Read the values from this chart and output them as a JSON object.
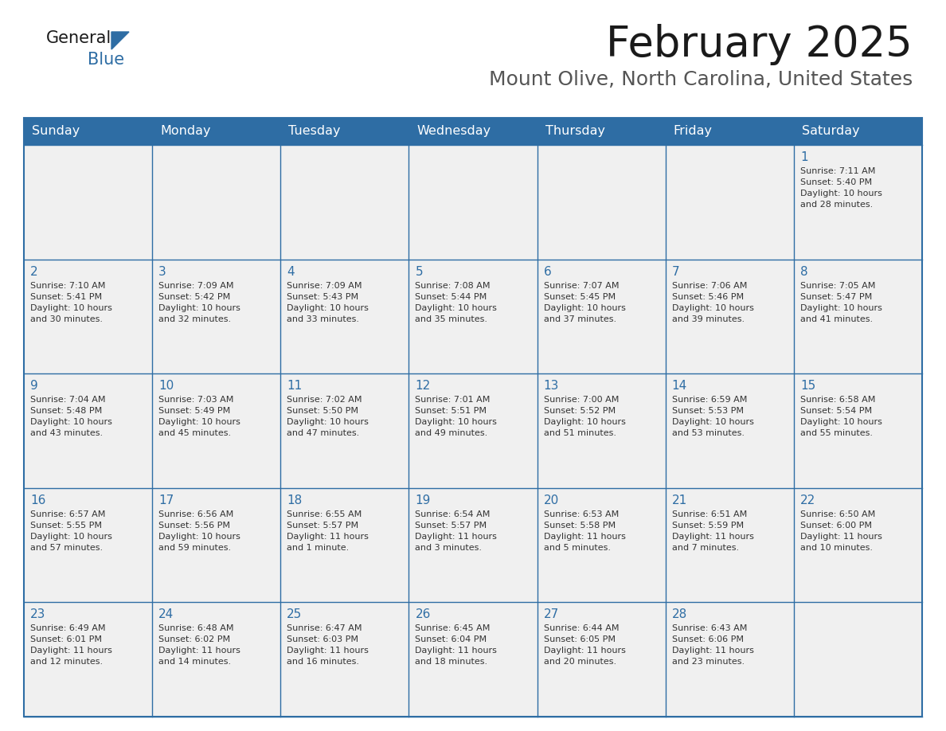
{
  "title": "February 2025",
  "subtitle": "Mount Olive, North Carolina, United States",
  "header_bg": "#2e6da4",
  "header_text": "#ffffff",
  "cell_bg": "#f0f0f0",
  "border_color": "#2e6da4",
  "day_number_color": "#2e6da4",
  "info_color": "#333333",
  "days_of_week": [
    "Sunday",
    "Monday",
    "Tuesday",
    "Wednesday",
    "Thursday",
    "Friday",
    "Saturday"
  ],
  "weeks": [
    [
      {
        "day": "",
        "info": ""
      },
      {
        "day": "",
        "info": ""
      },
      {
        "day": "",
        "info": ""
      },
      {
        "day": "",
        "info": ""
      },
      {
        "day": "",
        "info": ""
      },
      {
        "day": "",
        "info": ""
      },
      {
        "day": "1",
        "info": "Sunrise: 7:11 AM\nSunset: 5:40 PM\nDaylight: 10 hours\nand 28 minutes."
      }
    ],
    [
      {
        "day": "2",
        "info": "Sunrise: 7:10 AM\nSunset: 5:41 PM\nDaylight: 10 hours\nand 30 minutes."
      },
      {
        "day": "3",
        "info": "Sunrise: 7:09 AM\nSunset: 5:42 PM\nDaylight: 10 hours\nand 32 minutes."
      },
      {
        "day": "4",
        "info": "Sunrise: 7:09 AM\nSunset: 5:43 PM\nDaylight: 10 hours\nand 33 minutes."
      },
      {
        "day": "5",
        "info": "Sunrise: 7:08 AM\nSunset: 5:44 PM\nDaylight: 10 hours\nand 35 minutes."
      },
      {
        "day": "6",
        "info": "Sunrise: 7:07 AM\nSunset: 5:45 PM\nDaylight: 10 hours\nand 37 minutes."
      },
      {
        "day": "7",
        "info": "Sunrise: 7:06 AM\nSunset: 5:46 PM\nDaylight: 10 hours\nand 39 minutes."
      },
      {
        "day": "8",
        "info": "Sunrise: 7:05 AM\nSunset: 5:47 PM\nDaylight: 10 hours\nand 41 minutes."
      }
    ],
    [
      {
        "day": "9",
        "info": "Sunrise: 7:04 AM\nSunset: 5:48 PM\nDaylight: 10 hours\nand 43 minutes."
      },
      {
        "day": "10",
        "info": "Sunrise: 7:03 AM\nSunset: 5:49 PM\nDaylight: 10 hours\nand 45 minutes."
      },
      {
        "day": "11",
        "info": "Sunrise: 7:02 AM\nSunset: 5:50 PM\nDaylight: 10 hours\nand 47 minutes."
      },
      {
        "day": "12",
        "info": "Sunrise: 7:01 AM\nSunset: 5:51 PM\nDaylight: 10 hours\nand 49 minutes."
      },
      {
        "day": "13",
        "info": "Sunrise: 7:00 AM\nSunset: 5:52 PM\nDaylight: 10 hours\nand 51 minutes."
      },
      {
        "day": "14",
        "info": "Sunrise: 6:59 AM\nSunset: 5:53 PM\nDaylight: 10 hours\nand 53 minutes."
      },
      {
        "day": "15",
        "info": "Sunrise: 6:58 AM\nSunset: 5:54 PM\nDaylight: 10 hours\nand 55 minutes."
      }
    ],
    [
      {
        "day": "16",
        "info": "Sunrise: 6:57 AM\nSunset: 5:55 PM\nDaylight: 10 hours\nand 57 minutes."
      },
      {
        "day": "17",
        "info": "Sunrise: 6:56 AM\nSunset: 5:56 PM\nDaylight: 10 hours\nand 59 minutes."
      },
      {
        "day": "18",
        "info": "Sunrise: 6:55 AM\nSunset: 5:57 PM\nDaylight: 11 hours\nand 1 minute."
      },
      {
        "day": "19",
        "info": "Sunrise: 6:54 AM\nSunset: 5:57 PM\nDaylight: 11 hours\nand 3 minutes."
      },
      {
        "day": "20",
        "info": "Sunrise: 6:53 AM\nSunset: 5:58 PM\nDaylight: 11 hours\nand 5 minutes."
      },
      {
        "day": "21",
        "info": "Sunrise: 6:51 AM\nSunset: 5:59 PM\nDaylight: 11 hours\nand 7 minutes."
      },
      {
        "day": "22",
        "info": "Sunrise: 6:50 AM\nSunset: 6:00 PM\nDaylight: 11 hours\nand 10 minutes."
      }
    ],
    [
      {
        "day": "23",
        "info": "Sunrise: 6:49 AM\nSunset: 6:01 PM\nDaylight: 11 hours\nand 12 minutes."
      },
      {
        "day": "24",
        "info": "Sunrise: 6:48 AM\nSunset: 6:02 PM\nDaylight: 11 hours\nand 14 minutes."
      },
      {
        "day": "25",
        "info": "Sunrise: 6:47 AM\nSunset: 6:03 PM\nDaylight: 11 hours\nand 16 minutes."
      },
      {
        "day": "26",
        "info": "Sunrise: 6:45 AM\nSunset: 6:04 PM\nDaylight: 11 hours\nand 18 minutes."
      },
      {
        "day": "27",
        "info": "Sunrise: 6:44 AM\nSunset: 6:05 PM\nDaylight: 11 hours\nand 20 minutes."
      },
      {
        "day": "28",
        "info": "Sunrise: 6:43 AM\nSunset: 6:06 PM\nDaylight: 11 hours\nand 23 minutes."
      },
      {
        "day": "",
        "info": ""
      }
    ]
  ]
}
